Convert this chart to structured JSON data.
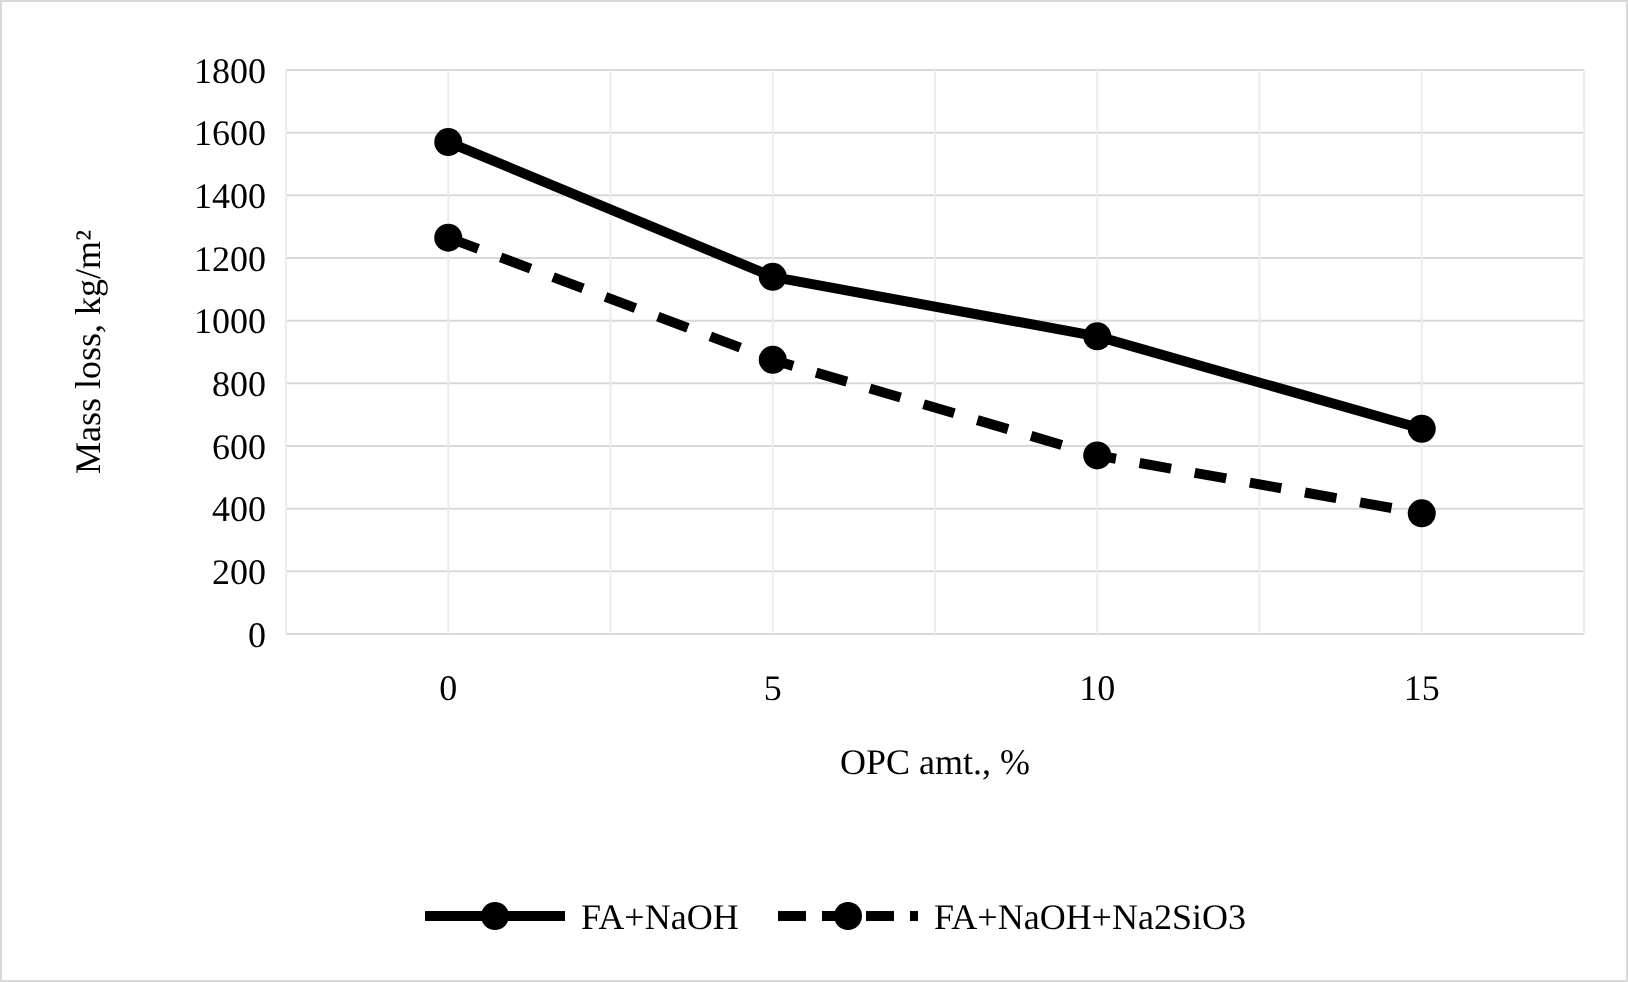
{
  "chart_data": {
    "type": "line",
    "xlabel": "OPC amt., %",
    "ylabel": "Mass loss, kg/m²",
    "categories": [
      "0",
      "5",
      "10",
      "15"
    ],
    "series": [
      {
        "name": "FA+NaOH",
        "color": "#000000",
        "values": [
          1570,
          1140,
          950,
          655
        ],
        "line_style": "solid"
      },
      {
        "name": "FA+NaOH+Na2SiO3",
        "color": "#000000",
        "values": [
          1265,
          875,
          570,
          385
        ],
        "line_style": "dashed"
      }
    ],
    "ylim": [
      0,
      1800
    ],
    "yticks": [
      0,
      200,
      400,
      600,
      800,
      1000,
      1200,
      1400,
      1600,
      1800
    ],
    "grid": true,
    "legend": "bottom",
    "marker": "circle"
  }
}
